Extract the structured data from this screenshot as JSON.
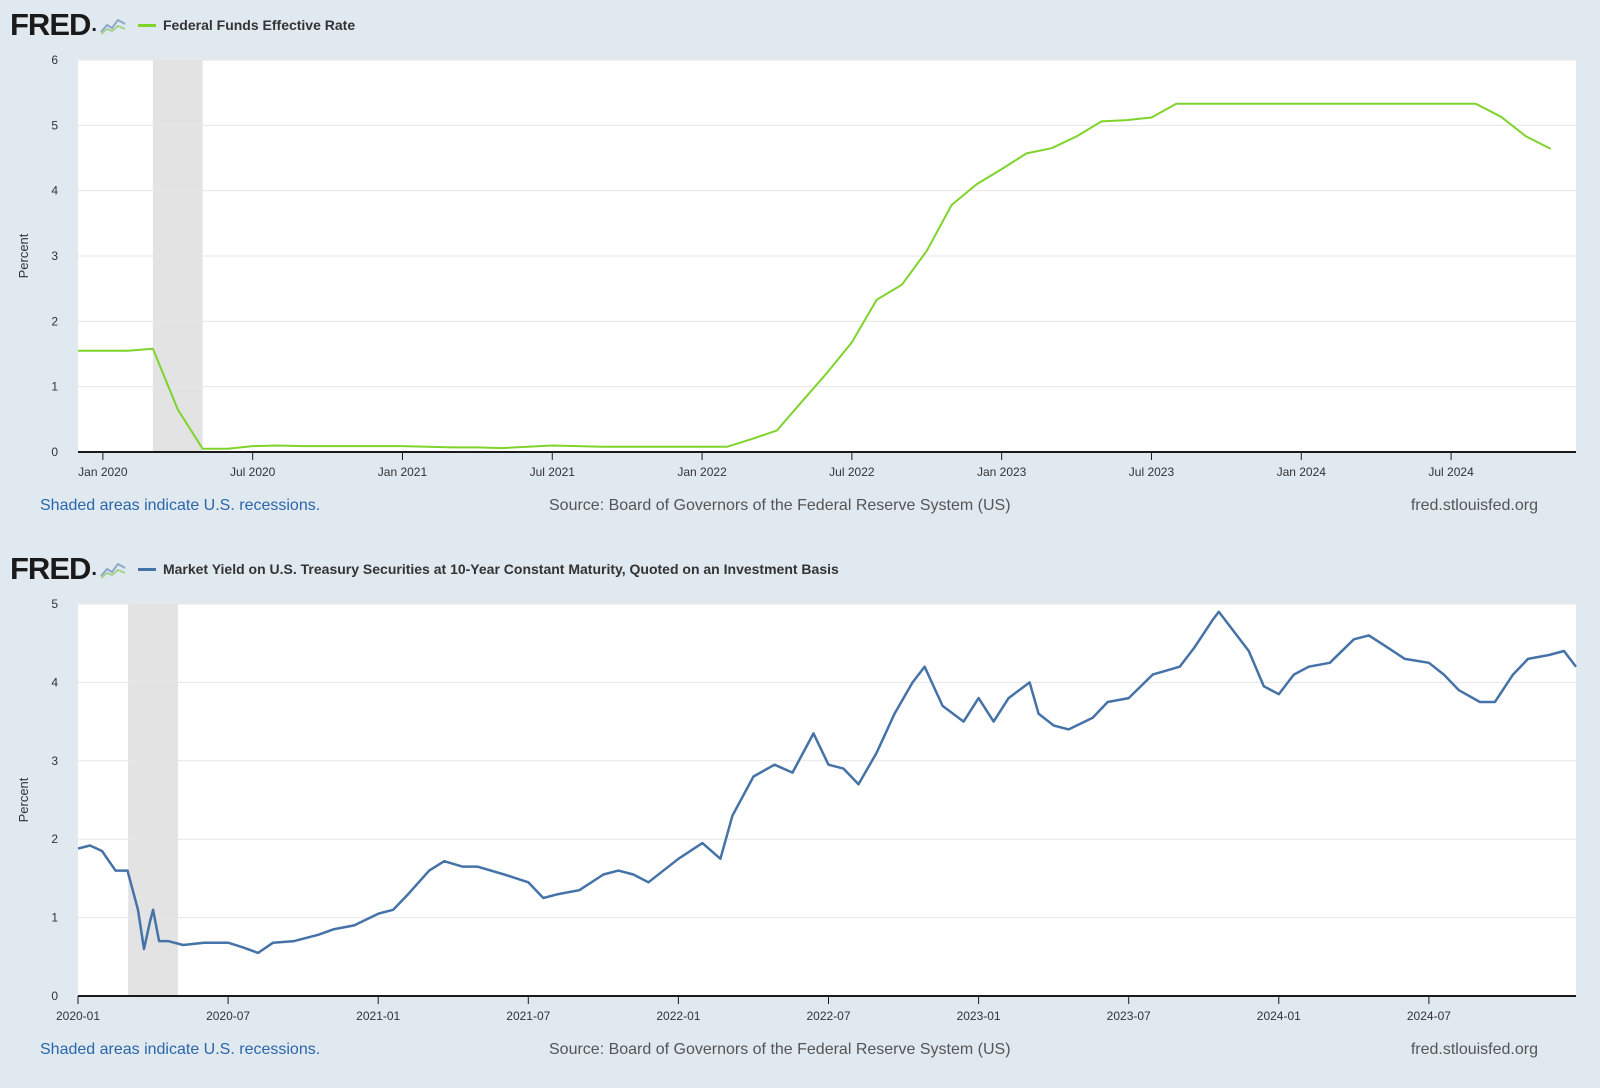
{
  "brand": {
    "logo_text": "FRED",
    "logo_icon": "fred-chart-icon"
  },
  "charts": [
    {
      "legend_label": "Federal Funds Effective Rate",
      "footer": {
        "recession_note": "Shaded areas indicate U.S. recessions.",
        "source": "Source: Board of Governors of the Federal Reserve System (US)",
        "site": "fred.stlouisfed.org"
      }
    },
    {
      "legend_label": "Market Yield on U.S. Treasury Securities at 10-Year Constant Maturity, Quoted on an Investment Basis",
      "footer": {
        "recession_note": "Shaded areas indicate U.S. recessions.",
        "source": "Source: Board of Governors of the Federal Reserve System (US)",
        "site": "fred.stlouisfed.org"
      }
    }
  ],
  "chart_data": [
    {
      "type": "line",
      "series_name": "Federal Funds Effective Rate",
      "color": "#7fd32b",
      "ylabel": "Percent",
      "ylim": [
        0,
        6
      ],
      "yticks": [
        0,
        1,
        2,
        3,
        4,
        5,
        6
      ],
      "xlim": [
        2019.917,
        2024.917
      ],
      "xticks": [
        {
          "label": "Jan 2020",
          "x": 2020.0
        },
        {
          "label": "Jul 2020",
          "x": 2020.5
        },
        {
          "label": "Jan 2021",
          "x": 2021.0
        },
        {
          "label": "Jul 2021",
          "x": 2021.5
        },
        {
          "label": "Jan 2022",
          "x": 2022.0
        },
        {
          "label": "Jul 2022",
          "x": 2022.5
        },
        {
          "label": "Jan 2023",
          "x": 2023.0
        },
        {
          "label": "Jul 2023",
          "x": 2023.5
        },
        {
          "label": "Jan 2024",
          "x": 2024.0
        },
        {
          "label": "Jul 2024",
          "x": 2024.5
        }
      ],
      "recession": {
        "start": 2020.167,
        "end": 2020.333
      },
      "grid": true,
      "points": [
        [
          2019.917,
          1.55
        ],
        [
          2020.0,
          1.55
        ],
        [
          2020.083,
          1.55
        ],
        [
          2020.167,
          1.58
        ],
        [
          2020.25,
          0.65
        ],
        [
          2020.333,
          0.05
        ],
        [
          2020.417,
          0.05
        ],
        [
          2020.5,
          0.09
        ],
        [
          2020.583,
          0.1
        ],
        [
          2020.667,
          0.09
        ],
        [
          2020.75,
          0.09
        ],
        [
          2020.833,
          0.09
        ],
        [
          2020.917,
          0.09
        ],
        [
          2021.0,
          0.09
        ],
        [
          2021.083,
          0.08
        ],
        [
          2021.167,
          0.07
        ],
        [
          2021.25,
          0.07
        ],
        [
          2021.333,
          0.06
        ],
        [
          2021.417,
          0.08
        ],
        [
          2021.5,
          0.1
        ],
        [
          2021.583,
          0.09
        ],
        [
          2021.667,
          0.08
        ],
        [
          2021.75,
          0.08
        ],
        [
          2021.833,
          0.08
        ],
        [
          2021.917,
          0.08
        ],
        [
          2022.0,
          0.08
        ],
        [
          2022.083,
          0.08
        ],
        [
          2022.167,
          0.2
        ],
        [
          2022.25,
          0.33
        ],
        [
          2022.333,
          0.77
        ],
        [
          2022.417,
          1.21
        ],
        [
          2022.5,
          1.68
        ],
        [
          2022.583,
          2.33
        ],
        [
          2022.667,
          2.56
        ],
        [
          2022.75,
          3.08
        ],
        [
          2022.833,
          3.78
        ],
        [
          2022.917,
          4.1
        ],
        [
          2023.0,
          4.33
        ],
        [
          2023.083,
          4.57
        ],
        [
          2023.167,
          4.65
        ],
        [
          2023.25,
          4.83
        ],
        [
          2023.333,
          5.06
        ],
        [
          2023.417,
          5.08
        ],
        [
          2023.5,
          5.12
        ],
        [
          2023.583,
          5.33
        ],
        [
          2023.667,
          5.33
        ],
        [
          2023.75,
          5.33
        ],
        [
          2023.833,
          5.33
        ],
        [
          2023.917,
          5.33
        ],
        [
          2024.0,
          5.33
        ],
        [
          2024.083,
          5.33
        ],
        [
          2024.167,
          5.33
        ],
        [
          2024.25,
          5.33
        ],
        [
          2024.333,
          5.33
        ],
        [
          2024.417,
          5.33
        ],
        [
          2024.5,
          5.33
        ],
        [
          2024.583,
          5.33
        ],
        [
          2024.667,
          5.13
        ],
        [
          2024.75,
          4.83
        ],
        [
          2024.833,
          4.64
        ]
      ]
    },
    {
      "type": "line",
      "series_name": "Market Yield on U.S. Treasury Securities at 10-Year Constant Maturity, Quoted on an Investment Basis",
      "color": "#4572a7",
      "ylabel": "Percent",
      "ylim": [
        0,
        5
      ],
      "yticks": [
        0,
        1,
        2,
        3,
        4,
        5
      ],
      "xlim": [
        2020.0,
        2024.99
      ],
      "xticks": [
        {
          "label": "2020-01",
          "x": 2020.0
        },
        {
          "label": "2020-07",
          "x": 2020.5
        },
        {
          "label": "2021-01",
          "x": 2021.0
        },
        {
          "label": "2021-07",
          "x": 2021.5
        },
        {
          "label": "2022-01",
          "x": 2022.0
        },
        {
          "label": "2022-07",
          "x": 2022.5
        },
        {
          "label": "2023-01",
          "x": 2023.0
        },
        {
          "label": "2023-07",
          "x": 2023.5
        },
        {
          "label": "2024-01",
          "x": 2024.0
        },
        {
          "label": "2024-07",
          "x": 2024.5
        }
      ],
      "recession": {
        "start": 2020.167,
        "end": 2020.333
      },
      "grid": true,
      "points": [
        [
          2020.0,
          1.88
        ],
        [
          2020.04,
          1.92
        ],
        [
          2020.08,
          1.85
        ],
        [
          2020.125,
          1.6
        ],
        [
          2020.165,
          1.6
        ],
        [
          2020.2,
          1.1
        ],
        [
          2020.22,
          0.6
        ],
        [
          2020.24,
          0.95
        ],
        [
          2020.25,
          1.1
        ],
        [
          2020.27,
          0.7
        ],
        [
          2020.3,
          0.7
        ],
        [
          2020.35,
          0.65
        ],
        [
          2020.42,
          0.68
        ],
        [
          2020.5,
          0.68
        ],
        [
          2020.55,
          0.62
        ],
        [
          2020.6,
          0.55
        ],
        [
          2020.65,
          0.68
        ],
        [
          2020.72,
          0.7
        ],
        [
          2020.8,
          0.78
        ],
        [
          2020.85,
          0.85
        ],
        [
          2020.92,
          0.9
        ],
        [
          2021.0,
          1.05
        ],
        [
          2021.05,
          1.1
        ],
        [
          2021.1,
          1.3
        ],
        [
          2021.17,
          1.6
        ],
        [
          2021.22,
          1.72
        ],
        [
          2021.28,
          1.65
        ],
        [
          2021.33,
          1.65
        ],
        [
          2021.42,
          1.55
        ],
        [
          2021.5,
          1.45
        ],
        [
          2021.55,
          1.25
        ],
        [
          2021.6,
          1.3
        ],
        [
          2021.67,
          1.35
        ],
        [
          2021.75,
          1.55
        ],
        [
          2021.8,
          1.6
        ],
        [
          2021.85,
          1.55
        ],
        [
          2021.9,
          1.45
        ],
        [
          2022.0,
          1.75
        ],
        [
          2022.08,
          1.95
        ],
        [
          2022.14,
          1.75
        ],
        [
          2022.18,
          2.3
        ],
        [
          2022.25,
          2.8
        ],
        [
          2022.32,
          2.95
        ],
        [
          2022.38,
          2.85
        ],
        [
          2022.45,
          3.35
        ],
        [
          2022.5,
          2.95
        ],
        [
          2022.55,
          2.9
        ],
        [
          2022.6,
          2.7
        ],
        [
          2022.66,
          3.1
        ],
        [
          2022.72,
          3.6
        ],
        [
          2022.78,
          4.0
        ],
        [
          2022.82,
          4.2
        ],
        [
          2022.88,
          3.7
        ],
        [
          2022.95,
          3.5
        ],
        [
          2023.0,
          3.8
        ],
        [
          2023.05,
          3.5
        ],
        [
          2023.1,
          3.8
        ],
        [
          2023.17,
          4.0
        ],
        [
          2023.2,
          3.6
        ],
        [
          2023.25,
          3.45
        ],
        [
          2023.3,
          3.4
        ],
        [
          2023.38,
          3.55
        ],
        [
          2023.43,
          3.75
        ],
        [
          2023.5,
          3.8
        ],
        [
          2023.58,
          4.1
        ],
        [
          2023.67,
          4.2
        ],
        [
          2023.72,
          4.45
        ],
        [
          2023.78,
          4.8
        ],
        [
          2023.8,
          4.9
        ],
        [
          2023.85,
          4.65
        ],
        [
          2023.9,
          4.4
        ],
        [
          2023.95,
          3.95
        ],
        [
          2024.0,
          3.85
        ],
        [
          2024.05,
          4.1
        ],
        [
          2024.1,
          4.2
        ],
        [
          2024.17,
          4.25
        ],
        [
          2024.25,
          4.55
        ],
        [
          2024.3,
          4.6
        ],
        [
          2024.36,
          4.45
        ],
        [
          2024.42,
          4.3
        ],
        [
          2024.5,
          4.25
        ],
        [
          2024.55,
          4.1
        ],
        [
          2024.6,
          3.9
        ],
        [
          2024.67,
          3.75
        ],
        [
          2024.72,
          3.75
        ],
        [
          2024.78,
          4.1
        ],
        [
          2024.83,
          4.3
        ],
        [
          2024.9,
          4.35
        ],
        [
          2024.95,
          4.4
        ],
        [
          2024.99,
          4.2
        ]
      ]
    }
  ]
}
